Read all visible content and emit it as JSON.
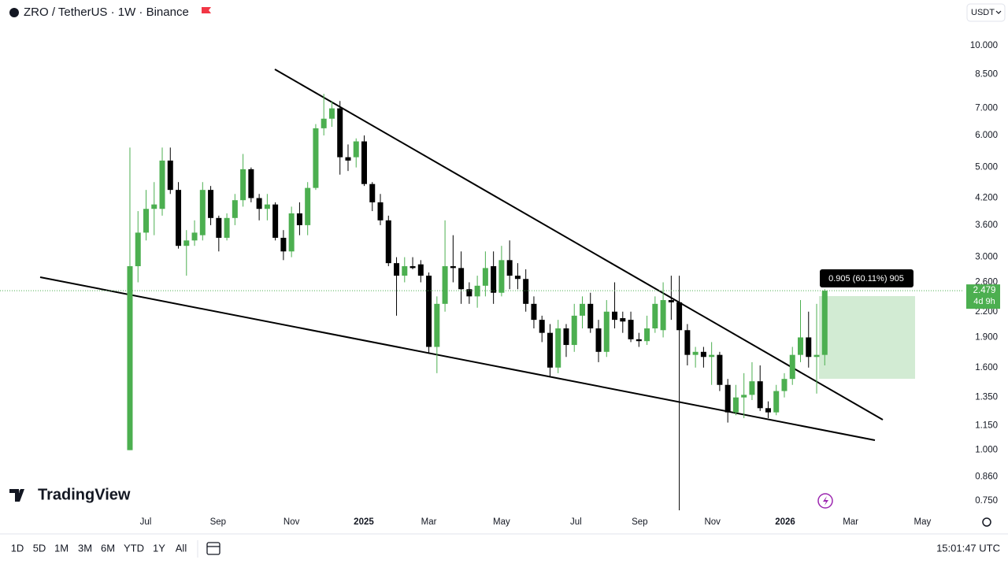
{
  "header": {
    "currency": "USDT"
  },
  "chart_data": {
    "type": "candlestick",
    "title": "ZRO / TetherUS · 1W · Binance",
    "log_scale": true,
    "grid": false,
    "up_color": "#4caf50",
    "down_color": "#000000",
    "categories": [
      null,
      null,
      null,
      null,
      null,
      null,
      null,
      null,
      null,
      null,
      null,
      null,
      null,
      null,
      null,
      null,
      null,
      null,
      null,
      null,
      null,
      null,
      null,
      null,
      null,
      null,
      null,
      null,
      null,
      null,
      null,
      null,
      null,
      null,
      null,
      null,
      null,
      null,
      null,
      null,
      null,
      null,
      null,
      null,
      null,
      null,
      null,
      null,
      null,
      null,
      null,
      null,
      null,
      null,
      null,
      null,
      null,
      null,
      null,
      null,
      null,
      null,
      null,
      null,
      null,
      null,
      null,
      null,
      null,
      null,
      null,
      null,
      null,
      null,
      null,
      null,
      null,
      null,
      null,
      null,
      null,
      null,
      null,
      null,
      null,
      null,
      null
    ],
    "open": [
      1.0,
      2.85,
      3.45,
      3.95,
      3.95,
      5.2,
      4.4,
      3.2,
      3.3,
      3.4,
      4.4,
      3.75,
      3.35,
      3.75,
      4.15,
      4.95,
      4.2,
      3.95,
      4.05,
      3.35,
      3.1,
      3.85,
      3.6,
      4.45,
      6.25,
      6.6,
      7.0,
      5.3,
      5.3,
      5.8,
      4.55,
      4.1,
      3.7,
      2.9,
      2.7,
      2.85,
      2.88,
      2.7,
      1.8,
      2.3,
      2.85,
      2.82,
      2.5,
      2.4,
      2.55,
      2.85,
      2.45,
      2.95,
      2.7,
      2.65,
      2.3,
      2.1,
      1.95,
      1.6,
      2.0,
      1.82,
      2.15,
      2.3,
      2.0,
      1.75,
      2.2,
      2.12,
      2.1,
      1.88,
      1.86,
      2.0,
      1.98,
      2.35,
      2.32,
      1.98,
      1.72,
      1.75,
      1.7,
      1.72,
      1.45,
      1.24,
      1.35,
      1.37,
      1.48,
      1.27,
      1.24,
      1.4,
      1.5,
      1.72,
      1.9,
      1.7,
      1.72
    ],
    "high": [
      5.6,
      3.9,
      4.4,
      4.6,
      5.6,
      5.6,
      4.6,
      3.5,
      3.7,
      4.6,
      4.5,
      3.8,
      3.85,
      4.3,
      5.4,
      5.0,
      4.3,
      4.3,
      4.1,
      3.5,
      4.0,
      4.1,
      4.6,
      6.4,
      7.6,
      7.3,
      7.3,
      5.7,
      5.9,
      6.0,
      4.6,
      4.3,
      3.8,
      3.0,
      3.0,
      3.0,
      2.95,
      2.75,
      2.4,
      3.7,
      3.4,
      3.1,
      2.6,
      2.7,
      3.1,
      3.1,
      3.2,
      3.3,
      2.9,
      2.8,
      2.4,
      2.15,
      2.05,
      2.1,
      2.05,
      2.3,
      2.4,
      2.45,
      2.1,
      2.35,
      2.6,
      2.2,
      2.2,
      1.95,
      2.15,
      2.4,
      2.6,
      2.7,
      2.7,
      2.05,
      1.8,
      1.8,
      1.85,
      1.75,
      1.5,
      1.45,
      1.55,
      1.65,
      1.62,
      1.32,
      1.45,
      1.55,
      1.8,
      2.35,
      2.2,
      2.3,
      2.5
    ],
    "low": [
      1.0,
      2.6,
      3.3,
      3.4,
      3.8,
      4.3,
      3.15,
      2.7,
      3.2,
      3.3,
      3.6,
      3.1,
      3.3,
      3.6,
      4.0,
      4.1,
      3.7,
      3.7,
      3.3,
      2.95,
      3.0,
      3.4,
      3.4,
      4.4,
      6.0,
      6.3,
      4.8,
      4.9,
      5.0,
      4.5,
      3.9,
      3.6,
      2.85,
      2.15,
      2.6,
      2.8,
      2.6,
      1.73,
      1.55,
      2.2,
      2.6,
      2.3,
      2.3,
      2.25,
      2.4,
      2.3,
      2.4,
      2.5,
      2.5,
      2.2,
      2.0,
      1.85,
      1.52,
      1.55,
      1.7,
      1.75,
      2.0,
      1.95,
      1.65,
      1.7,
      2.0,
      1.95,
      1.85,
      1.8,
      1.82,
      1.95,
      1.9,
      2.1,
      0.71,
      1.62,
      1.6,
      1.6,
      1.45,
      1.4,
      1.17,
      1.22,
      1.2,
      1.33,
      1.25,
      1.2,
      1.22,
      1.35,
      1.45,
      1.65,
      1.6,
      1.38,
      1.62
    ],
    "close": [
      2.85,
      3.45,
      3.95,
      4.05,
      5.2,
      4.4,
      3.2,
      3.3,
      3.45,
      4.4,
      3.75,
      3.35,
      3.75,
      4.15,
      4.95,
      4.2,
      3.95,
      4.05,
      3.35,
      3.1,
      3.85,
      3.6,
      4.45,
      6.25,
      6.6,
      7.0,
      5.3,
      5.2,
      5.8,
      4.55,
      4.1,
      3.7,
      2.9,
      2.7,
      2.85,
      2.82,
      2.7,
      1.8,
      2.3,
      2.85,
      2.82,
      2.5,
      2.4,
      2.55,
      2.82,
      2.45,
      2.95,
      2.7,
      2.65,
      2.3,
      2.1,
      1.95,
      1.6,
      2.0,
      1.82,
      2.15,
      2.3,
      2.0,
      1.75,
      2.2,
      2.1,
      2.08,
      1.88,
      1.86,
      2.0,
      2.3,
      2.35,
      2.32,
      1.98,
      1.72,
      1.75,
      1.7,
      1.72,
      1.45,
      1.24,
      1.35,
      1.37,
      1.48,
      1.27,
      1.24,
      1.4,
      1.5,
      1.72,
      1.9,
      1.7,
      1.72,
      2.479
    ],
    "xlim": [
      -16.08,
      103.03
    ],
    "xticks": [
      {
        "value": 1.95,
        "label": "Jul"
      },
      {
        "value": 10.9,
        "label": "Sep"
      },
      {
        "value": 20.0,
        "label": "Nov"
      },
      {
        "value": 28.95,
        "label": "2025"
      },
      {
        "value": 37.0,
        "label": "Mar"
      },
      {
        "value": 46.0,
        "label": "May"
      },
      {
        "value": 55.2,
        "label": "Jul"
      },
      {
        "value": 63.1,
        "label": "Sep"
      },
      {
        "value": 72.1,
        "label": "Nov"
      },
      {
        "value": 81.1,
        "label": "2026"
      },
      {
        "value": 89.2,
        "label": "Mar"
      },
      {
        "value": 98.1,
        "label": "May"
      }
    ],
    "ylim": [
      0.71,
      11.34
    ],
    "yticks": [
      {
        "value": 10,
        "label": "10.000"
      },
      {
        "value": 8.5,
        "label": "8.500"
      },
      {
        "value": 7,
        "label": "7.000"
      },
      {
        "value": 6,
        "label": "6.000"
      },
      {
        "value": 5,
        "label": "5.000"
      },
      {
        "value": 4.2,
        "label": "4.200"
      },
      {
        "value": 3.6,
        "label": "3.600"
      },
      {
        "value": 3,
        "label": "3.000"
      },
      {
        "value": 2.6,
        "label": "2.600"
      },
      {
        "value": 2.2,
        "label": "2.200"
      },
      {
        "value": 1.9,
        "label": "1.900"
      },
      {
        "value": 1.6,
        "label": "1.600"
      },
      {
        "value": 1.35,
        "label": "1.350"
      },
      {
        "value": 1.15,
        "label": "1.150"
      },
      {
        "value": 1,
        "label": "1.000"
      },
      {
        "value": 0.86,
        "label": "0.860"
      },
      {
        "value": 0.75,
        "label": "0.750"
      }
    ],
    "last_price": 2.479,
    "countdown": "4d 9h",
    "measure_label": "0.905 (60.11%) 905"
  },
  "logo": "TradingView",
  "toolbar": {
    "ranges": [
      "1D",
      "5D",
      "1M",
      "3M",
      "6M",
      "YTD",
      "1Y",
      "All"
    ],
    "time": "15:01:47 UTC"
  }
}
